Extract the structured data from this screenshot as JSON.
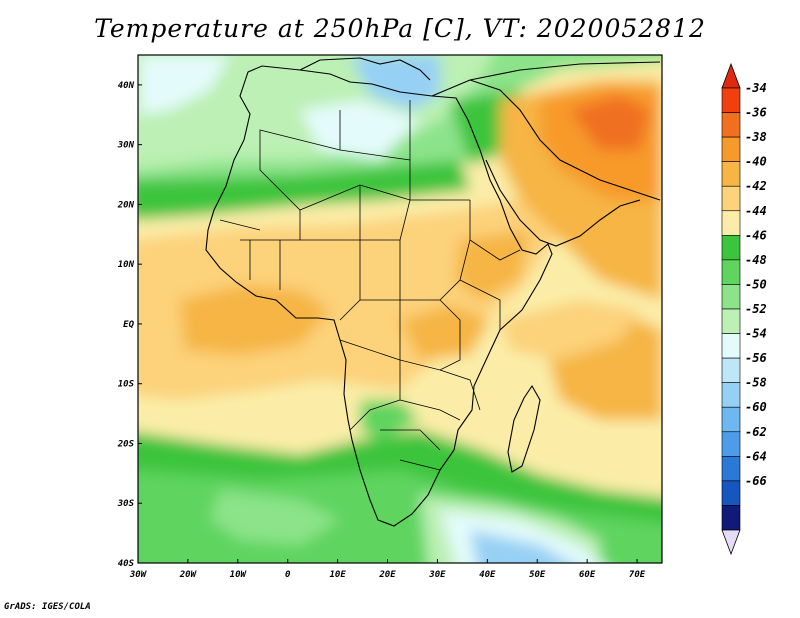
{
  "title": "Temperature at 250hPa [C], VT: 2020052812",
  "footer": "GrADS: IGES/COLA",
  "map": {
    "region": "Africa",
    "lon_range": [
      -30,
      75
    ],
    "lat_range": [
      -40,
      45
    ],
    "x_ticks": [
      "30W",
      "20W",
      "10W",
      "0",
      "10E",
      "20E",
      "30E",
      "40E",
      "50E",
      "60E",
      "70E"
    ],
    "y_ticks": [
      "40S",
      "30S",
      "20S",
      "10S",
      "EQ",
      "10N",
      "20N",
      "30N",
      "40N"
    ]
  },
  "colorbar": {
    "levels": [
      "-34",
      "-36",
      "-38",
      "-40",
      "-42",
      "-44",
      "-46",
      "-48",
      "-50",
      "-52",
      "-54",
      "-56",
      "-58",
      "-60",
      "-62",
      "-64",
      "-66"
    ],
    "colors": [
      "#f04010",
      "#f07020",
      "#f79a2c",
      "#f6b544",
      "#fcd27a",
      "#fbeda8",
      "#3cc43c",
      "#5fd45f",
      "#8ce38a",
      "#bcf0b4",
      "#e4fbfb",
      "#bde6f6",
      "#96d0f4",
      "#6db8f0",
      "#4c9cea",
      "#2a78d8",
      "#1656c0",
      "#101a78"
    ],
    "top_arrow_color": "#e02a10",
    "bottom_arrow_color": "#e6dcf7"
  }
}
